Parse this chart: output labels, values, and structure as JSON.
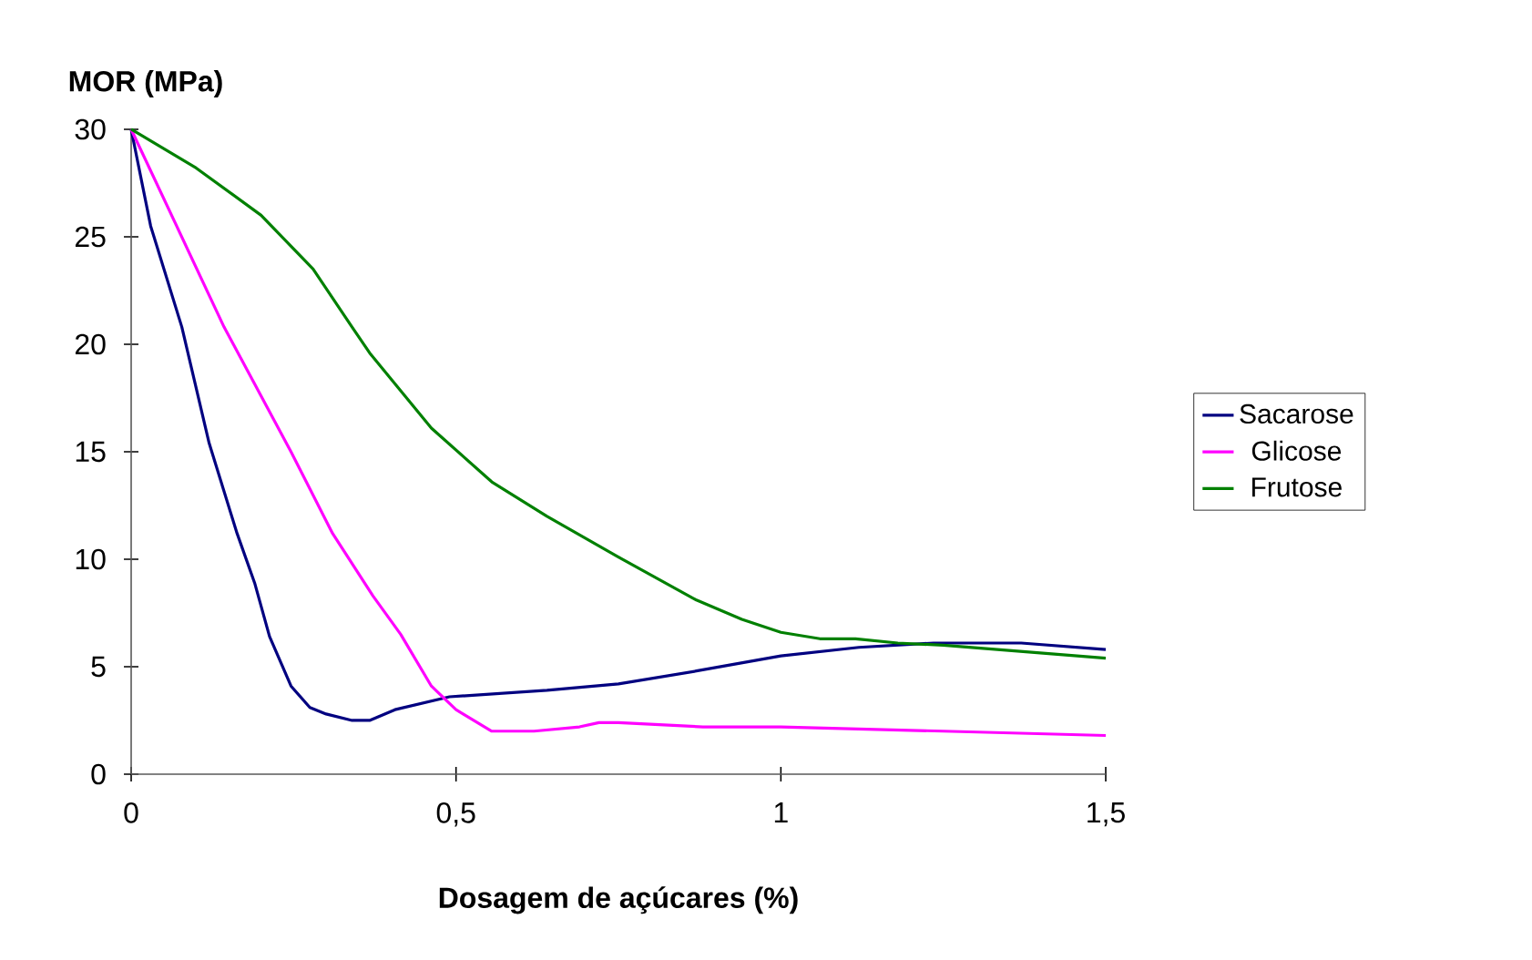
{
  "chart_data": {
    "type": "line",
    "ylabel": "MOR (MPa)",
    "xlabel": "Dosagem de açúcares (%)",
    "xlim": [
      0,
      1.5
    ],
    "ylim": [
      0,
      30
    ],
    "xticks": [
      0,
      {
        "value": 0.5,
        "label": "0,5"
      },
      1,
      {
        "value": 1.5,
        "label": "1,5"
      }
    ],
    "yticks": [
      0,
      5,
      10,
      15,
      20,
      25,
      30
    ],
    "legend": "right",
    "grid": false,
    "marker": "none",
    "line_style": "solid",
    "series": [
      {
        "name": "Sacarose",
        "color": "#000080",
        "x": [
          0,
          0.03,
          0.078,
          0.12,
          0.163,
          0.19,
          0.213,
          0.246,
          0.275,
          0.3,
          0.34,
          0.367,
          0.406,
          0.49,
          0.64,
          0.75,
          0.87,
          1.0,
          1.12,
          1.235,
          1.37,
          1.5
        ],
        "values": [
          30,
          25.5,
          20.8,
          15.4,
          11.2,
          8.9,
          6.4,
          4.1,
          3.1,
          2.8,
          2.5,
          2.5,
          3.0,
          3.6,
          3.9,
          4.2,
          4.8,
          5.5,
          5.9,
          6.1,
          6.1,
          5.8
        ]
      },
      {
        "name": "Glicose",
        "color": "#ff00ff",
        "x": [
          0,
          0.07,
          0.143,
          0.246,
          0.31,
          0.372,
          0.415,
          0.462,
          0.5,
          0.555,
          0.62,
          0.69,
          0.72,
          0.75,
          0.88,
          1.0,
          1.25,
          1.5
        ],
        "values": [
          30,
          25.5,
          20.8,
          15.0,
          11.2,
          8.3,
          6.5,
          4.1,
          3.0,
          2.0,
          2.0,
          2.2,
          2.4,
          2.4,
          2.2,
          2.2,
          2.0,
          1.8
        ]
      },
      {
        "name": "Frutose",
        "color": "#008000",
        "x": [
          0,
          0.1,
          0.2,
          0.28,
          0.34,
          0.367,
          0.462,
          0.555,
          0.64,
          0.75,
          0.87,
          0.94,
          1.0,
          1.06,
          1.115,
          1.18,
          1.25,
          1.5
        ],
        "values": [
          30,
          28.2,
          26.0,
          23.5,
          20.8,
          19.6,
          16.1,
          13.6,
          12.0,
          10.1,
          8.1,
          7.2,
          6.6,
          6.3,
          6.3,
          6.1,
          6.0,
          5.4
        ]
      }
    ]
  }
}
